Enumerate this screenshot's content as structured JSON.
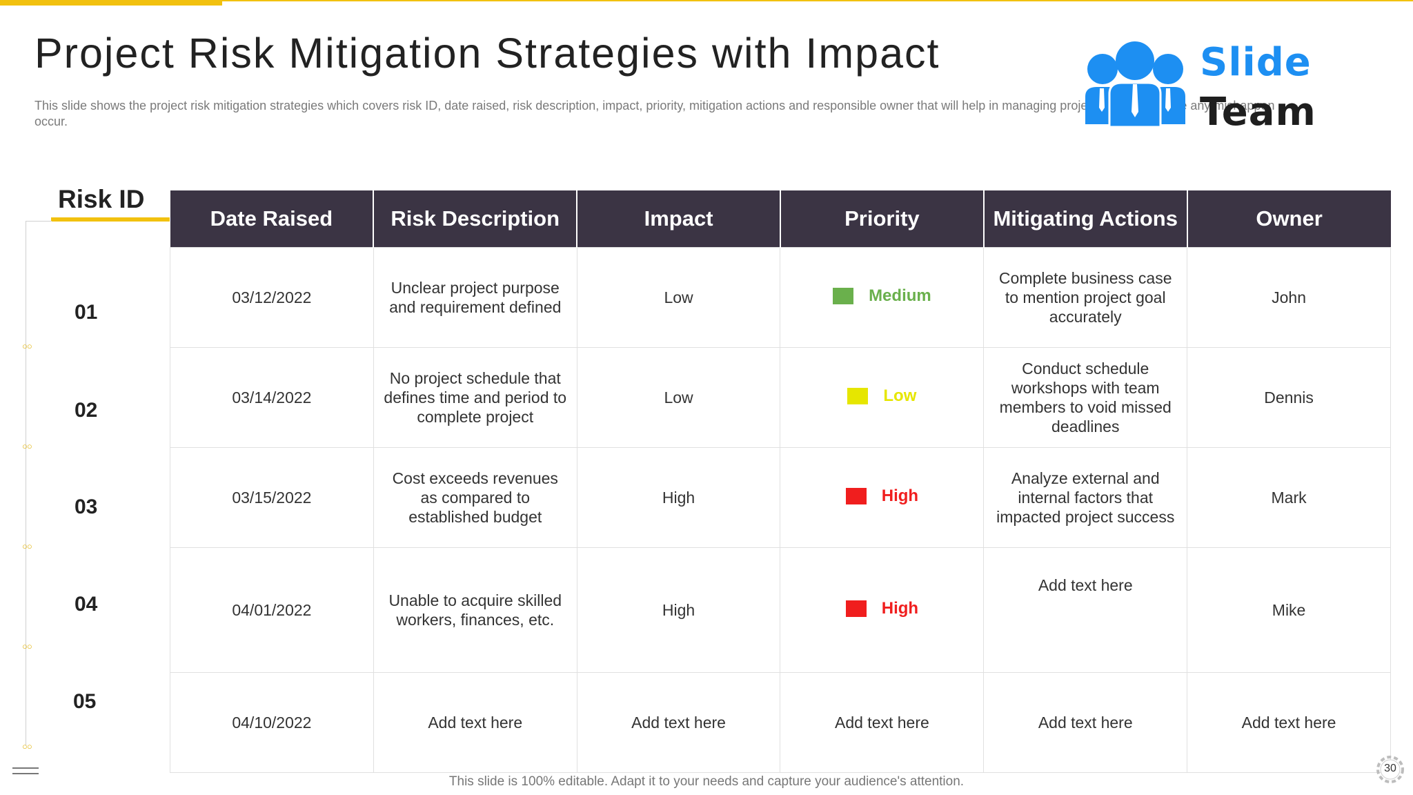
{
  "title": "Project Risk Mitigation Strategies with Impact",
  "subtitle": "This slide shows the project risk mitigation strategies which covers risk ID, date raised, risk description, impact, priority, mitigation actions and responsible owner that will help in managing project activities before any mishappen occur.",
  "logo": {
    "line1": "Slide",
    "line2": "Team"
  },
  "risk_id_header": "Risk ID",
  "columns": [
    "Date Raised",
    "Risk Description",
    "Impact",
    "Priority",
    "Mitigating Actions",
    "Owner"
  ],
  "rows": [
    {
      "id": "01",
      "date": "03/12/2022",
      "description": "Unclear project purpose and requirement defined",
      "impact": "Low",
      "priority": "Medium",
      "priority_color": "#6ab04c",
      "action": "Complete business case to mention project goal accurately",
      "owner": "John"
    },
    {
      "id": "02",
      "date": "03/14/2022",
      "description": "No project schedule that defines time and period to complete project",
      "impact": "Low",
      "priority": "Low",
      "priority_color": "#e6e600",
      "action": "Conduct schedule workshops with team members to void missed deadlines",
      "owner": "Dennis"
    },
    {
      "id": "03",
      "date": "03/15/2022",
      "description": "Cost exceeds revenues as compared to established budget",
      "impact": "High",
      "priority": "High",
      "priority_color": "#f01e1e",
      "action": "Analyze external and internal factors that impacted project success",
      "owner": "Mark"
    },
    {
      "id": "04",
      "date": "04/01/2022",
      "description": "Unable to acquire skilled workers, finances, etc.",
      "impact": "High",
      "priority": "High",
      "priority_color": "#f01e1e",
      "action": "Add text here",
      "owner": "Mike"
    },
    {
      "id": "05",
      "date": "04/10/2022",
      "description": "Add text here",
      "impact": "Add text here",
      "priority": "Add text here",
      "priority_color": "",
      "action": "Add text here",
      "owner": "Add text here"
    }
  ],
  "footer": "This slide is 100% editable. Adapt it to your needs and capture your audience's attention.",
  "page_number": "30"
}
